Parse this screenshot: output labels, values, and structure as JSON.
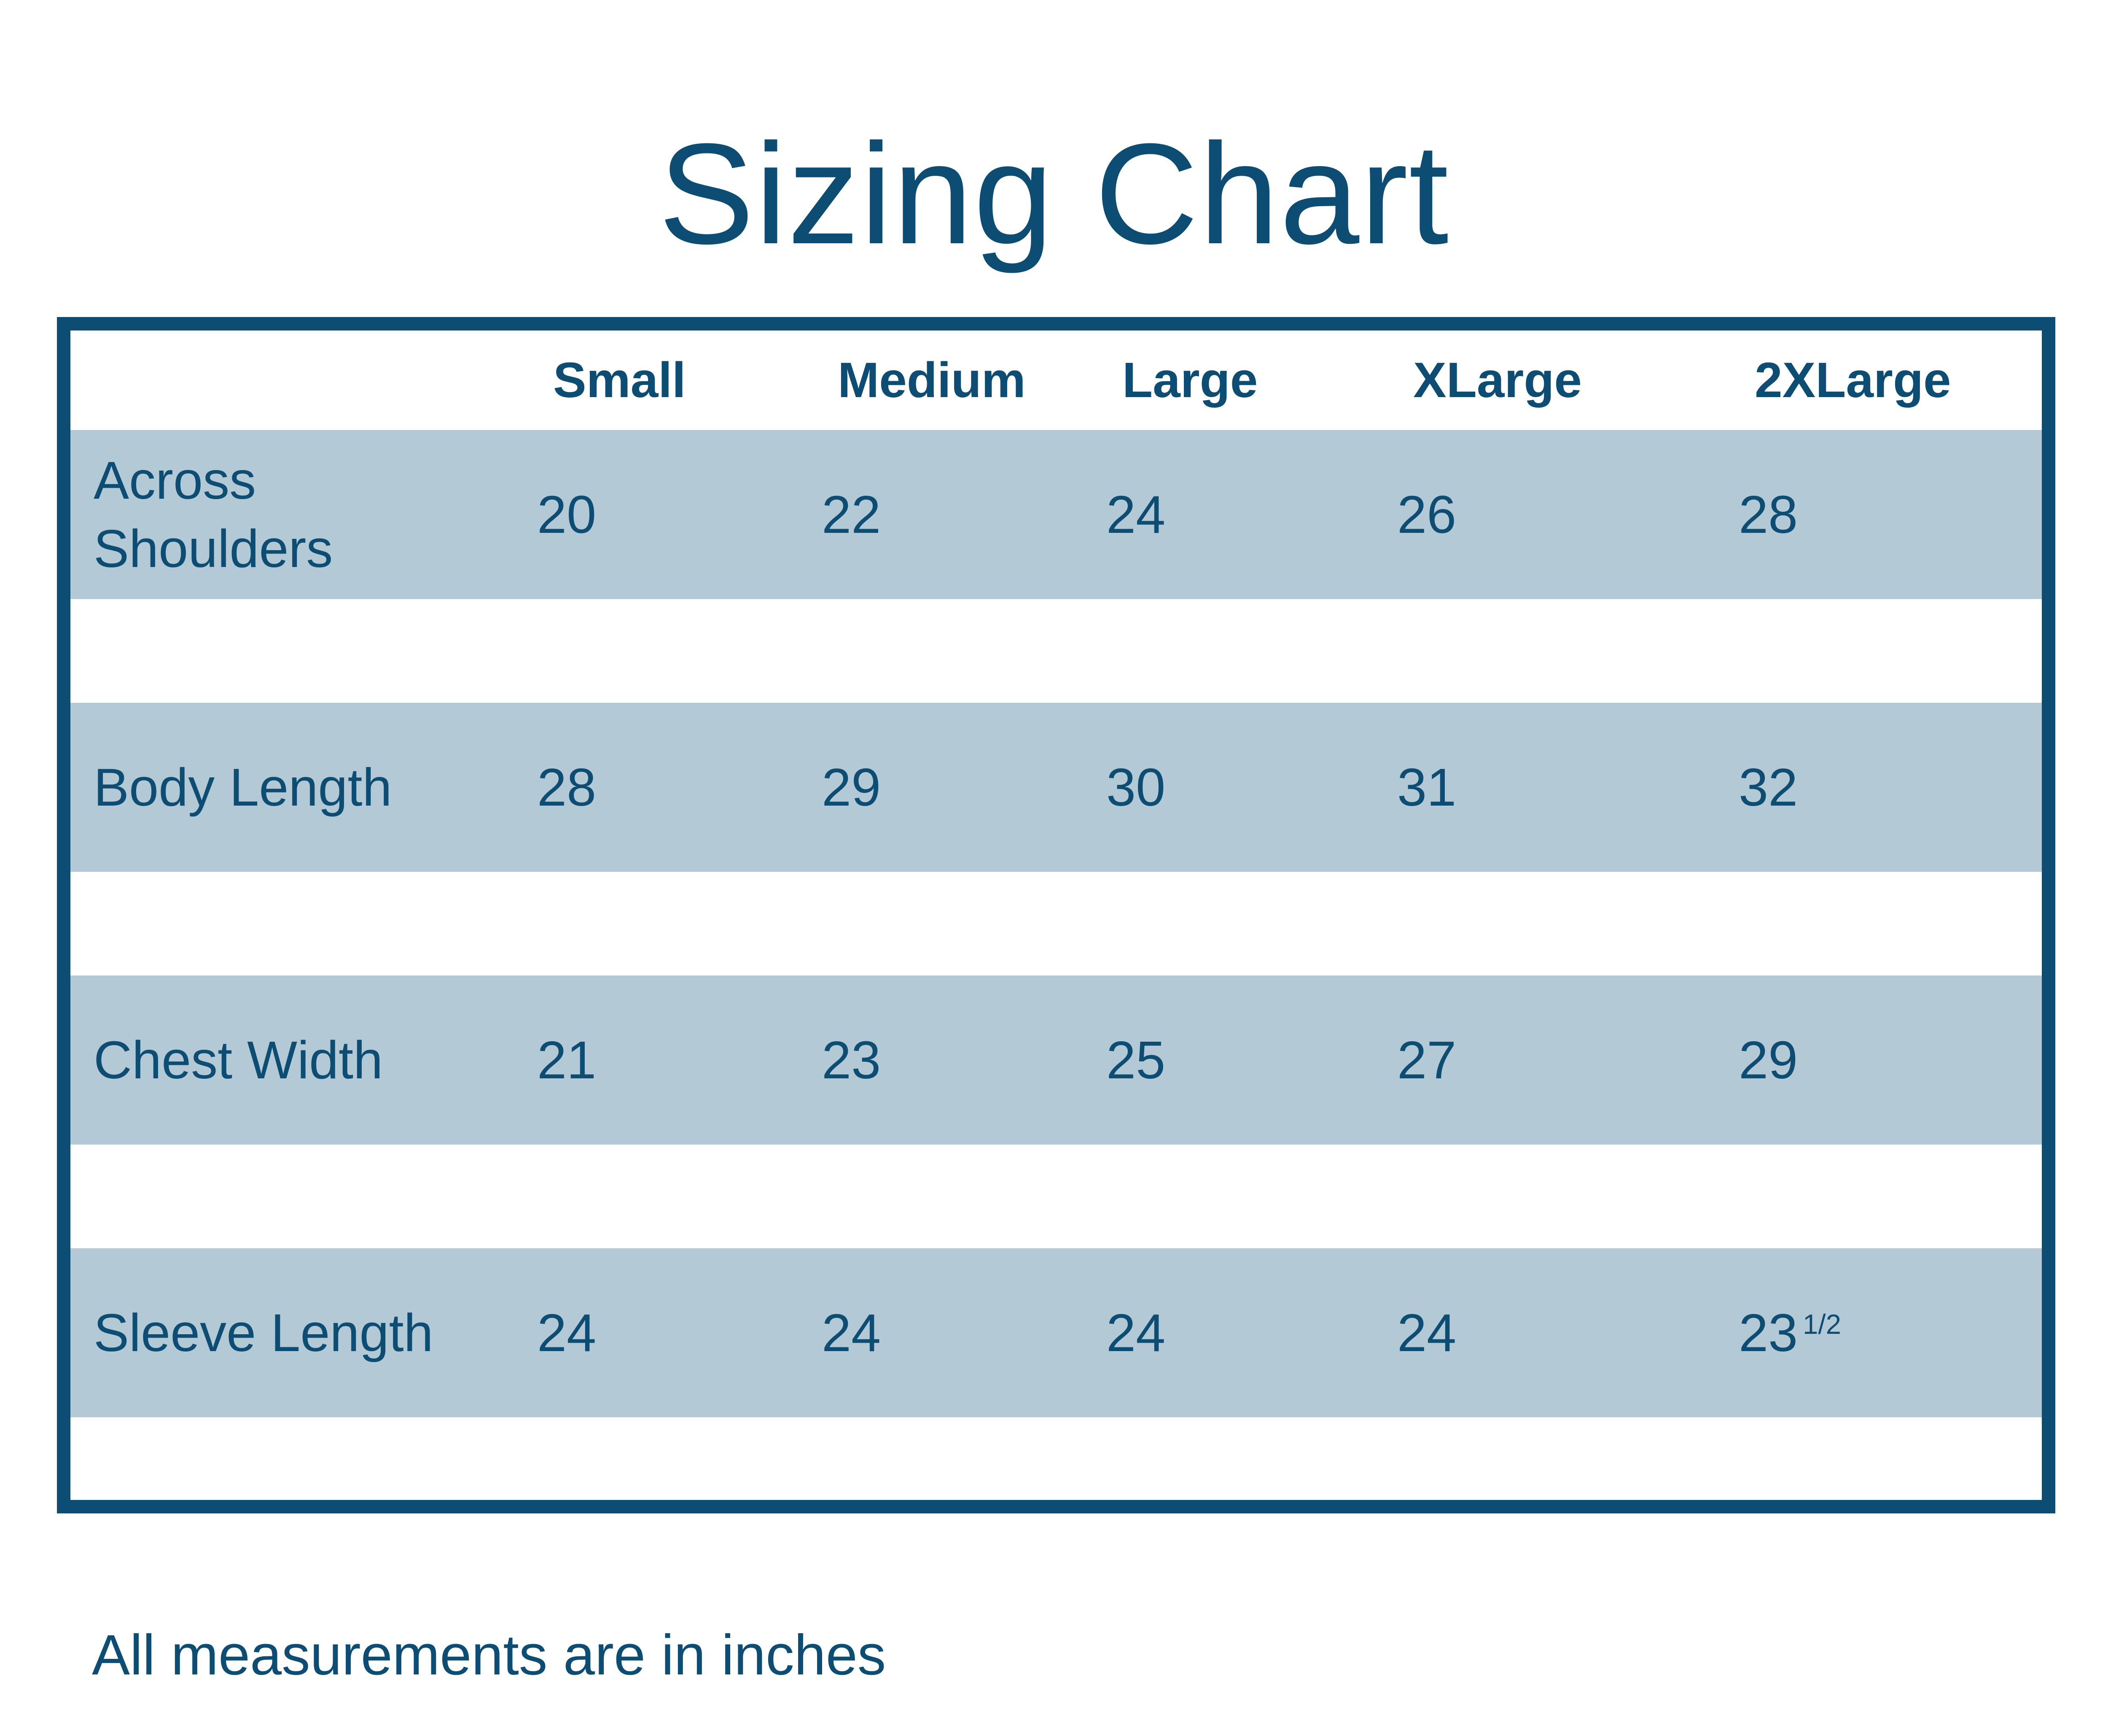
{
  "title": "Sizing Chart",
  "footnote": "All measurements are in inches",
  "colors": {
    "dark_blue": "#0d4d73",
    "light_blue_band": "#b3c9d6",
    "background": "#ffffff"
  },
  "table": {
    "columns": [
      "Small",
      "Medium",
      "Large",
      "XLarge",
      "2XLarge"
    ],
    "rows": [
      {
        "label": "Across Shoulders",
        "values": [
          "20",
          "22",
          "24",
          "26",
          "28"
        ]
      },
      {
        "label": "Body Length",
        "values": [
          "28",
          "29",
          "30",
          "31",
          "32"
        ]
      },
      {
        "label": "Chest Width",
        "values": [
          "21",
          "23",
          "25",
          "27",
          "29"
        ]
      },
      {
        "label": "Sleeve Length",
        "values": [
          "24",
          "24",
          "24",
          "24",
          "23"
        ],
        "sup": {
          "4": "1/2"
        }
      }
    ]
  },
  "chart_data": {
    "type": "table",
    "title": "Sizing Chart",
    "columns": [
      "Small",
      "Medium",
      "Large",
      "XLarge",
      "2XLarge"
    ],
    "rows": [
      {
        "label": "Across Shoulders",
        "values": [
          20,
          22,
          24,
          26,
          28
        ]
      },
      {
        "label": "Body Length",
        "values": [
          28,
          29,
          30,
          31,
          32
        ]
      },
      {
        "label": "Chest Width",
        "values": [
          21,
          23,
          25,
          27,
          29
        ]
      },
      {
        "label": "Sleeve Length",
        "values": [
          24,
          24,
          24,
          24,
          23.5
        ]
      }
    ],
    "note": "All measurements are in inches",
    "units": "inches",
    "legend_position": "none",
    "grid": false
  }
}
